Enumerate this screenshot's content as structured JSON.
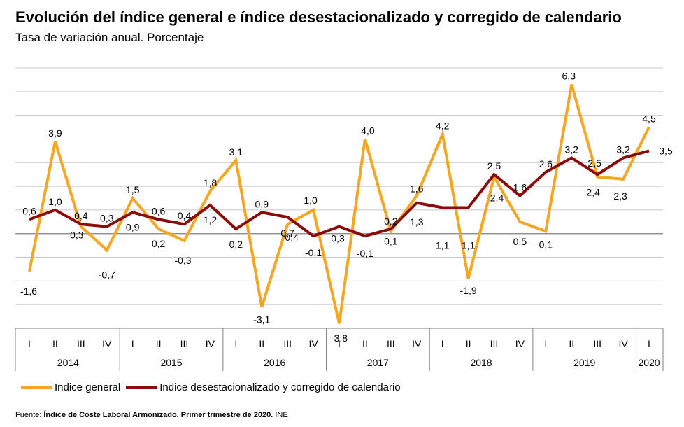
{
  "colors": {
    "general": "#F5A623",
    "adjusted": "#8B0A0A",
    "grid": "#C8C8C8",
    "axis": "#808080"
  },
  "source": {
    "prefix": "Fuente:",
    "bold": "Índice de Coste Laboral Armonizado. Primer trimestre de 2020.",
    "suffix": "INE"
  },
  "chart_data": {
    "type": "line",
    "title": "Evolución del índice general e índice desestacionalizado y corregido de calendario",
    "subtitle": "Tasa de variación anual. Porcentaje",
    "categories": [
      "I",
      "II",
      "III",
      "IV",
      "I",
      "II",
      "III",
      "IV",
      "I",
      "II",
      "III",
      "IV",
      "I",
      "II",
      "III",
      "IV",
      "I",
      "II",
      "III",
      "IV",
      "I",
      "II",
      "III",
      "IV",
      "I"
    ],
    "years": [
      {
        "label": "2014",
        "quarters": 4
      },
      {
        "label": "2015",
        "quarters": 4
      },
      {
        "label": "2016",
        "quarters": 4
      },
      {
        "label": "2017",
        "quarters": 4
      },
      {
        "label": "2018",
        "quarters": 4
      },
      {
        "label": "2019",
        "quarters": 4
      },
      {
        "label": "2020",
        "quarters": 1
      }
    ],
    "ylim": [
      -4,
      7
    ],
    "grid": true,
    "legend_position": "bottom",
    "series": [
      {
        "name": "Indice general",
        "values": [
          -1.6,
          3.9,
          0.3,
          -0.7,
          1.5,
          0.2,
          -0.3,
          1.8,
          3.1,
          -3.1,
          0.4,
          1.0,
          -3.8,
          4.0,
          0.1,
          1.6,
          4.2,
          -1.9,
          2.4,
          0.5,
          0.1,
          6.3,
          2.4,
          2.3,
          4.5
        ],
        "labels": [
          "-1,6",
          "3,9",
          "0,3",
          "-0,7",
          "1,5",
          "0,2",
          "-0,3",
          "1,8",
          "3,1",
          "-3,1",
          "0,4",
          "1,0",
          "-3,8",
          "4,0",
          "0,1",
          "1,6",
          "4,2",
          "-1,9",
          "2,4",
          "0,5",
          "0,1",
          "6,3",
          "2,4",
          "2,3",
          "4,5"
        ]
      },
      {
        "name": "Indice desestacionalizado y corregido de calendario",
        "values": [
          0.6,
          1.0,
          0.4,
          0.3,
          0.9,
          0.6,
          0.4,
          1.2,
          0.2,
          0.9,
          0.7,
          -0.1,
          0.3,
          -0.1,
          0.2,
          1.3,
          1.1,
          1.1,
          2.5,
          1.6,
          2.6,
          3.2,
          2.5,
          3.2,
          3.5
        ],
        "labels": [
          "0,6",
          "1,0",
          "0,4",
          "0,3",
          "0,9",
          "0,6",
          "0,4",
          "1,2",
          "0,2",
          "0,9",
          "0,7",
          "-0,1",
          "0,3",
          "-0,1",
          "0,2",
          "1,3",
          "1,1",
          "1,1",
          "2,5",
          "1,6",
          "2,6",
          "3,2",
          "2,5",
          "3,2",
          "3,5"
        ]
      }
    ]
  }
}
